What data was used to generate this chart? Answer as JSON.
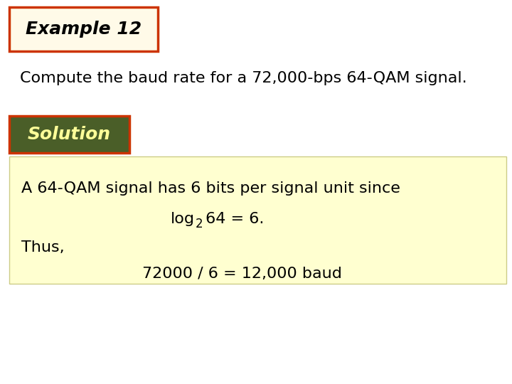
{
  "bg_color": "#ffffff",
  "example_title": "Example 12",
  "example_title_box_facecolor": "#fffae8",
  "example_title_box_edgecolor": "#cc3300",
  "example_title_fontsize": 18,
  "problem_text": "Compute the baud rate for a 72,000-bps 64-QAM signal.",
  "problem_fontsize": 16,
  "solution_label": "Solution",
  "solution_box_facecolor": "#4a5e28",
  "solution_box_edgecolor": "#cc3300",
  "solution_text_color": "#ffff99",
  "solution_fontsize": 18,
  "content_box_facecolor": "#ffffd0",
  "content_box_edgecolor": "#cccc88",
  "line1": "A 64-QAM signal has 6 bits per signal unit since",
  "line3": "Thus,",
  "line4": "72000 / 6 = 12,000 baud",
  "content_fontsize": 16
}
